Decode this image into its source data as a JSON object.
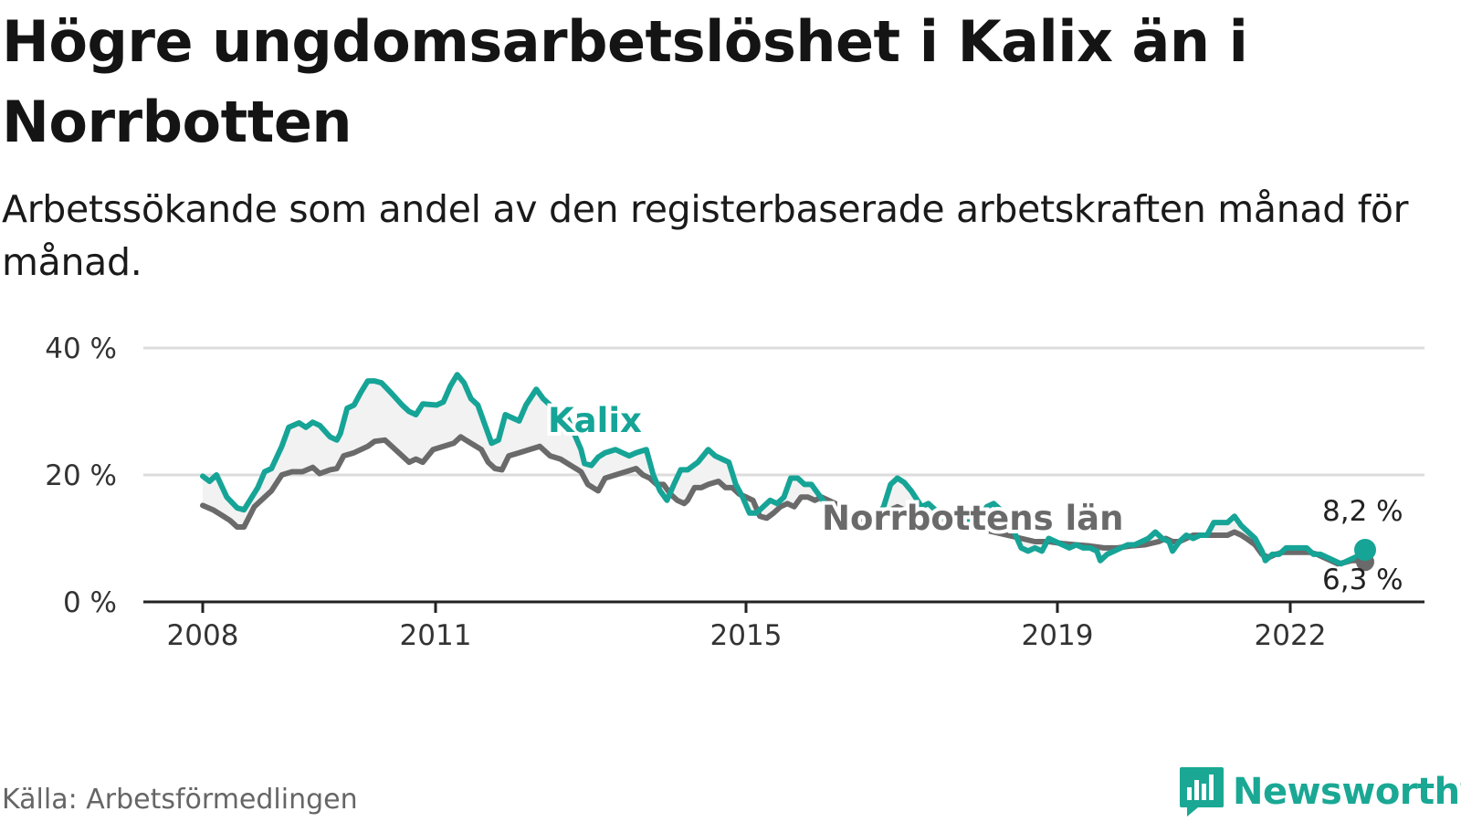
{
  "title": "Högre ungdomsarbetslöshet i Kalix än i Norrbotten",
  "subtitle": "Arbetssökande som andel av den registerbaserade arbetskraften månad för månad.",
  "source": "Källa: Arbetsförmedlingen",
  "brand": "Newsworthy",
  "colors": {
    "kalix": "#16a497",
    "norrbotten": "#6a6a6a",
    "brand": "#1aa894",
    "grid": "#dcdcdc",
    "fill": "#f2f2f2"
  },
  "chart_data": {
    "type": "line",
    "title": "Högre ungdomsarbetslöshet i Kalix än i Norrbotten",
    "xlabel": "",
    "ylabel": "",
    "ylim": [
      0,
      40
    ],
    "yticks": [
      0,
      20,
      40
    ],
    "ytick_labels": [
      "0 %",
      "20 %",
      "40 %"
    ],
    "xlim": [
      2008.0,
      2023.7
    ],
    "xticks": [
      2008,
      2011,
      2015,
      2019,
      2022
    ],
    "xtick_labels": [
      "2008",
      "2011",
      "2015",
      "2019",
      "2022"
    ],
    "x_unit": "year (monthly, sampled)",
    "series": [
      {
        "name": "Kalix",
        "label": "Kalix",
        "end_label": "8,2 %",
        "values": [
          [
            2008.0,
            19.8
          ],
          [
            2008.1,
            19.0
          ],
          [
            2008.2,
            20.0
          ],
          [
            2008.35,
            16.5
          ],
          [
            2008.5,
            14.8
          ],
          [
            2008.6,
            14.5
          ],
          [
            2008.8,
            18.0
          ],
          [
            2008.9,
            20.5
          ],
          [
            2009.0,
            21.0
          ],
          [
            2009.15,
            24.5
          ],
          [
            2009.25,
            27.5
          ],
          [
            2009.4,
            28.2
          ],
          [
            2009.5,
            27.5
          ],
          [
            2009.6,
            28.3
          ],
          [
            2009.7,
            27.8
          ],
          [
            2009.85,
            26.0
          ],
          [
            2009.95,
            25.5
          ],
          [
            2010.0,
            26.5
          ],
          [
            2010.1,
            30.5
          ],
          [
            2010.2,
            31.0
          ],
          [
            2010.3,
            33.0
          ],
          [
            2010.4,
            34.8
          ],
          [
            2010.5,
            34.8
          ],
          [
            2010.6,
            34.5
          ],
          [
            2010.75,
            32.8
          ],
          [
            2010.9,
            31.0
          ],
          [
            2011.0,
            30.0
          ],
          [
            2011.1,
            29.5
          ],
          [
            2011.2,
            31.2
          ],
          [
            2011.4,
            31.0
          ],
          [
            2011.5,
            31.5
          ],
          [
            2011.6,
            34.0
          ],
          [
            2011.7,
            35.8
          ],
          [
            2011.8,
            34.5
          ],
          [
            2011.9,
            32.0
          ],
          [
            2012.0,
            31.0
          ],
          [
            2012.1,
            28.0
          ],
          [
            2012.2,
            25.0
          ],
          [
            2012.3,
            25.5
          ],
          [
            2012.4,
            29.5
          ],
          [
            2012.5,
            29.0
          ],
          [
            2012.6,
            28.5
          ],
          [
            2012.7,
            31.0
          ],
          [
            2012.85,
            33.5
          ],
          [
            2012.95,
            32.0
          ],
          [
            2013.1,
            30.5
          ],
          [
            2013.2,
            29.0
          ],
          [
            2013.3,
            29.0
          ],
          [
            2013.4,
            26.5
          ],
          [
            2013.5,
            24.0
          ],
          [
            2013.55,
            21.8
          ],
          [
            2013.65,
            21.5
          ],
          [
            2013.75,
            22.8
          ],
          [
            2013.85,
            23.5
          ],
          [
            2014.0,
            24.0
          ],
          [
            2014.1,
            23.5
          ],
          [
            2014.2,
            23.0
          ],
          [
            2014.3,
            23.5
          ],
          [
            2014.45,
            24.0
          ],
          [
            2014.55,
            20.0
          ],
          [
            2014.65,
            17.5
          ],
          [
            2014.75,
            16.0
          ],
          [
            2014.85,
            18.5
          ],
          [
            2014.95,
            20.8
          ],
          [
            2015.05,
            20.8
          ],
          [
            2015.2,
            22.0
          ],
          [
            2015.35,
            24.0
          ],
          [
            2015.45,
            23.0
          ],
          [
            2015.55,
            22.5
          ],
          [
            2015.65,
            22.0
          ],
          [
            2015.75,
            18.5
          ],
          [
            2015.85,
            16.5
          ],
          [
            2015.95,
            14.0
          ],
          [
            2016.05,
            14.0
          ],
          [
            2016.15,
            15.0
          ],
          [
            2016.25,
            16.0
          ],
          [
            2016.35,
            15.5
          ],
          [
            2016.45,
            16.5
          ],
          [
            2016.55,
            19.5
          ],
          [
            2016.65,
            19.5
          ],
          [
            2016.75,
            18.5
          ],
          [
            2016.85,
            18.5
          ],
          [
            2016.95,
            17.0
          ],
          [
            2017.05,
            15.5
          ],
          [
            2017.2,
            14.0
          ],
          [
            2017.35,
            13.0
          ],
          [
            2017.5,
            13.5
          ],
          [
            2017.6,
            12.5
          ],
          [
            2017.7,
            14.0
          ],
          [
            2017.8,
            13.5
          ],
          [
            2017.9,
            15.0
          ],
          [
            2018.0,
            18.5
          ],
          [
            2018.1,
            19.5
          ],
          [
            2018.2,
            18.8
          ],
          [
            2018.3,
            17.5
          ],
          [
            2018.45,
            15.0
          ],
          [
            2018.55,
            15.5
          ],
          [
            2018.65,
            14.5
          ],
          [
            2018.8,
            13.0
          ],
          [
            2018.9,
            14.0
          ],
          [
            2019.0,
            14.5
          ],
          [
            2019.1,
            12.5
          ],
          [
            2019.2,
            13.5
          ],
          [
            2019.3,
            13.0
          ],
          [
            2019.4,
            15.0
          ],
          [
            2019.5,
            15.5
          ],
          [
            2019.6,
            14.5
          ],
          [
            2019.7,
            12.8
          ],
          [
            2019.8,
            11.0
          ],
          [
            2019.9,
            8.5
          ],
          [
            2020.0,
            8.0
          ],
          [
            2020.1,
            8.5
          ],
          [
            2020.2,
            8.0
          ],
          [
            2020.3,
            10.0
          ],
          [
            2020.4,
            9.5
          ],
          [
            2020.5,
            9.0
          ],
          [
            2020.6,
            8.5
          ],
          [
            2020.7,
            9.0
          ],
          [
            2020.8,
            8.5
          ],
          [
            2020.9,
            8.5
          ],
          [
            2021.0,
            8.0
          ],
          [
            2021.05,
            6.5
          ],
          [
            2021.15,
            7.5
          ],
          [
            2021.25,
            8.0
          ],
          [
            2021.35,
            8.5
          ],
          [
            2021.45,
            9.0
          ],
          [
            2021.55,
            9.0
          ],
          [
            2021.65,
            9.5
          ],
          [
            2021.75,
            10.0
          ],
          [
            2021.85,
            11.0
          ],
          [
            2021.95,
            10.0
          ],
          [
            2022.05,
            9.5
          ],
          [
            2022.1,
            8.0
          ],
          [
            2022.2,
            9.5
          ],
          [
            2022.3,
            10.5
          ],
          [
            2022.4,
            10.0
          ],
          [
            2022.5,
            10.5
          ],
          [
            2022.6,
            10.5
          ],
          [
            2022.7,
            12.5
          ],
          [
            2022.8,
            12.5
          ],
          [
            2022.9,
            12.5
          ],
          [
            2023.0,
            13.5
          ],
          [
            2023.1,
            12.0
          ],
          [
            2023.2,
            11.0
          ],
          [
            2023.3,
            10.0
          ],
          [
            2023.4,
            8.0
          ],
          [
            2023.45,
            6.5
          ],
          [
            2023.55,
            7.5
          ],
          [
            2023.65,
            7.5
          ],
          [
            2023.75,
            8.5
          ],
          [
            2023.85,
            8.5
          ],
          [
            2023.95,
            8.5
          ],
          [
            2024.05,
            8.5
          ],
          [
            2024.15,
            7.5
          ],
          [
            2024.25,
            7.5
          ],
          [
            2024.35,
            7.0
          ],
          [
            2024.45,
            6.5
          ],
          [
            2024.55,
            6.0
          ],
          [
            2024.65,
            6.5
          ],
          [
            2024.75,
            7.0
          ],
          [
            2024.85,
            7.5
          ],
          [
            2024.9,
            8.2
          ]
        ]
      },
      {
        "name": "Norrbottens län",
        "label": "Norrbottens län",
        "end_label": "6,3 %",
        "values": [
          [
            2008.0,
            15.2
          ],
          [
            2008.15,
            14.5
          ],
          [
            2008.3,
            13.5
          ],
          [
            2008.4,
            12.8
          ],
          [
            2008.5,
            11.8
          ],
          [
            2008.6,
            11.8
          ],
          [
            2008.75,
            15.0
          ],
          [
            2008.9,
            16.5
          ],
          [
            2009.0,
            17.5
          ],
          [
            2009.15,
            20.0
          ],
          [
            2009.3,
            20.5
          ],
          [
            2009.45,
            20.5
          ],
          [
            2009.6,
            21.2
          ],
          [
            2009.7,
            20.2
          ],
          [
            2009.85,
            20.8
          ],
          [
            2009.95,
            21.0
          ],
          [
            2010.05,
            23.0
          ],
          [
            2010.2,
            23.5
          ],
          [
            2010.4,
            24.5
          ],
          [
            2010.5,
            25.3
          ],
          [
            2010.65,
            25.5
          ],
          [
            2010.75,
            24.5
          ],
          [
            2010.9,
            23.0
          ],
          [
            2011.0,
            22.0
          ],
          [
            2011.1,
            22.5
          ],
          [
            2011.2,
            22.0
          ],
          [
            2011.35,
            24.0
          ],
          [
            2011.5,
            24.5
          ],
          [
            2011.65,
            25.0
          ],
          [
            2011.75,
            26.0
          ],
          [
            2011.9,
            25.0
          ],
          [
            2012.05,
            24.0
          ],
          [
            2012.15,
            22.0
          ],
          [
            2012.25,
            21.0
          ],
          [
            2012.35,
            20.8
          ],
          [
            2012.45,
            23.0
          ],
          [
            2012.6,
            23.5
          ],
          [
            2012.75,
            24.0
          ],
          [
            2012.9,
            24.5
          ],
          [
            2013.05,
            23.0
          ],
          [
            2013.2,
            22.5
          ],
          [
            2013.35,
            21.5
          ],
          [
            2013.5,
            20.5
          ],
          [
            2013.6,
            18.5
          ],
          [
            2013.75,
            17.5
          ],
          [
            2013.85,
            19.5
          ],
          [
            2014.0,
            20.0
          ],
          [
            2014.15,
            20.5
          ],
          [
            2014.3,
            21.0
          ],
          [
            2014.4,
            20.0
          ],
          [
            2014.5,
            19.5
          ],
          [
            2014.6,
            18.5
          ],
          [
            2014.7,
            18.5
          ],
          [
            2014.8,
            17.0
          ],
          [
            2014.9,
            16.0
          ],
          [
            2015.0,
            15.5
          ],
          [
            2015.05,
            16.0
          ],
          [
            2015.15,
            18.0
          ],
          [
            2015.25,
            18.0
          ],
          [
            2015.35,
            18.5
          ],
          [
            2015.5,
            19.0
          ],
          [
            2015.6,
            18.0
          ],
          [
            2015.7,
            18.0
          ],
          [
            2015.8,
            17.0
          ],
          [
            2015.9,
            16.5
          ],
          [
            2016.0,
            16.0
          ],
          [
            2016.1,
            13.5
          ],
          [
            2016.2,
            13.2
          ],
          [
            2016.3,
            14.0
          ],
          [
            2016.4,
            15.0
          ],
          [
            2016.5,
            15.5
          ],
          [
            2016.6,
            15.0
          ],
          [
            2016.7,
            16.5
          ],
          [
            2016.8,
            16.5
          ],
          [
            2016.9,
            16.0
          ],
          [
            2017.0,
            16.5
          ],
          [
            2017.1,
            16.0
          ],
          [
            2017.2,
            15.5
          ],
          [
            2017.3,
            14.5
          ],
          [
            2017.4,
            13.5
          ],
          [
            2017.5,
            12.2
          ],
          [
            2017.6,
            12.0
          ],
          [
            2017.7,
            13.0
          ],
          [
            2017.8,
            13.0
          ],
          [
            2017.9,
            14.0
          ],
          [
            2018.0,
            14.5
          ],
          [
            2018.1,
            15.0
          ],
          [
            2018.2,
            14.5
          ],
          [
            2018.3,
            14.0
          ],
          [
            2018.5,
            13.5
          ],
          [
            2018.7,
            13.0
          ],
          [
            2018.9,
            12.5
          ],
          [
            2019.1,
            12.0
          ],
          [
            2019.3,
            11.5
          ],
          [
            2019.5,
            11.0
          ],
          [
            2019.7,
            10.5
          ],
          [
            2019.9,
            10.0
          ],
          [
            2020.1,
            9.5
          ],
          [
            2020.3,
            9.5
          ],
          [
            2020.5,
            9.2
          ],
          [
            2020.7,
            9.0
          ],
          [
            2020.9,
            8.8
          ],
          [
            2021.1,
            8.5
          ],
          [
            2021.3,
            8.5
          ],
          [
            2021.5,
            8.8
          ],
          [
            2021.7,
            9.0
          ],
          [
            2021.9,
            9.5
          ],
          [
            2022.0,
            10.0
          ],
          [
            2022.1,
            9.5
          ],
          [
            2022.2,
            9.5
          ],
          [
            2022.3,
            10.0
          ],
          [
            2022.4,
            10.5
          ],
          [
            2022.5,
            10.5
          ],
          [
            2022.6,
            10.5
          ],
          [
            2022.7,
            10.5
          ],
          [
            2022.8,
            10.5
          ],
          [
            2022.9,
            10.5
          ],
          [
            2023.0,
            11.0
          ],
          [
            2023.1,
            10.5
          ],
          [
            2023.2,
            9.8
          ],
          [
            2023.3,
            9.0
          ],
          [
            2023.4,
            7.5
          ],
          [
            2023.5,
            7.0
          ],
          [
            2023.6,
            7.5
          ],
          [
            2023.7,
            7.8
          ],
          [
            2023.8,
            7.8
          ],
          [
            2023.9,
            7.8
          ],
          [
            2024.0,
            7.8
          ],
          [
            2024.1,
            7.8
          ],
          [
            2024.2,
            7.5
          ],
          [
            2024.3,
            7.0
          ],
          [
            2024.4,
            6.5
          ],
          [
            2024.5,
            6.0
          ],
          [
            2024.6,
            6.2
          ],
          [
            2024.7,
            6.5
          ],
          [
            2024.8,
            6.5
          ],
          [
            2024.9,
            6.3
          ]
        ]
      }
    ]
  }
}
